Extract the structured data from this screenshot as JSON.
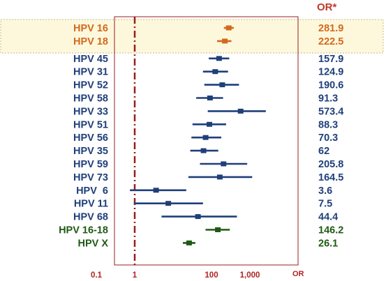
{
  "chart_data": {
    "type": "forest",
    "title": "",
    "xlabel": "OR",
    "value_header": "OR*",
    "x_scale": "log",
    "xlim": [
      0.1,
      3000
    ],
    "x_ticks": [
      0.1,
      1,
      100,
      1000
    ],
    "x_tick_labels": [
      "0.1",
      "1",
      "100",
      "1,000"
    ],
    "reference_line": 1,
    "grid": false,
    "colors": {
      "orange": "#d2691e",
      "blue": "#1f3f7a",
      "green": "#1f5a14",
      "frame": "#9b1c1c",
      "highlight": "#fdf8dc"
    },
    "rows": [
      {
        "label": "HPV 16",
        "value": "281.9",
        "or": 281.9,
        "ci": [
          210,
          380
        ],
        "color": "orange",
        "highlight": true
      },
      {
        "label": "HPV 18",
        "value": "222.5",
        "or": 222.5,
        "ci": [
          140,
          330
        ],
        "color": "orange",
        "highlight": true
      },
      {
        "label": "HPV 45",
        "value": "157.9",
        "or": 157.9,
        "ci": [
          85,
          290
        ],
        "color": "blue"
      },
      {
        "label": "HPV 31",
        "value": "124.9",
        "or": 124.9,
        "ci": [
          60,
          270
        ],
        "color": "blue"
      },
      {
        "label": "HPV 52",
        "value": "190.6",
        "or": 190.6,
        "ci": [
          65,
          520
        ],
        "color": "blue"
      },
      {
        "label": "HPV 58",
        "value": "91.3",
        "or": 91.3,
        "ci": [
          40,
          200
        ],
        "color": "blue"
      },
      {
        "label": "HPV 33",
        "value": "573.4",
        "or": 573.4,
        "ci": [
          80,
          2600
        ],
        "color": "blue"
      },
      {
        "label": "HPV 51",
        "value": "88.3",
        "or": 88.3,
        "ci": [
          32,
          240
        ],
        "color": "blue"
      },
      {
        "label": "HPV 56",
        "value": "70.3",
        "or": 70.3,
        "ci": [
          30,
          180
        ],
        "color": "blue"
      },
      {
        "label": "HPV 35",
        "value": "62",
        "or": 62,
        "ci": [
          28,
          150
        ],
        "color": "blue"
      },
      {
        "label": "HPV 59",
        "value": "205.8",
        "or": 205.8,
        "ci": [
          50,
          850
        ],
        "color": "blue"
      },
      {
        "label": "HPV 73",
        "value": "164.5",
        "or": 164.5,
        "ci": [
          25,
          1150
        ],
        "color": "blue"
      },
      {
        "label": "HPV  6",
        "value": "3.6",
        "or": 3.6,
        "ci": [
          0.75,
          22
        ],
        "color": "blue"
      },
      {
        "label": "HPV 11",
        "value": "7.5",
        "or": 7.5,
        "ci": [
          0.95,
          60
        ],
        "color": "blue"
      },
      {
        "label": "HPV 68",
        "value": "44.4",
        "or": 44.4,
        "ci": [
          5,
          460
        ],
        "color": "blue"
      },
      {
        "label": "HPV 16-18",
        "value": "146.2",
        "or": 146.2,
        "ci": [
          70,
          300
        ],
        "color": "green"
      },
      {
        "label": "HPV X",
        "value": "26.1",
        "or": 26.1,
        "ci": [
          18,
          38
        ],
        "color": "green"
      }
    ]
  }
}
